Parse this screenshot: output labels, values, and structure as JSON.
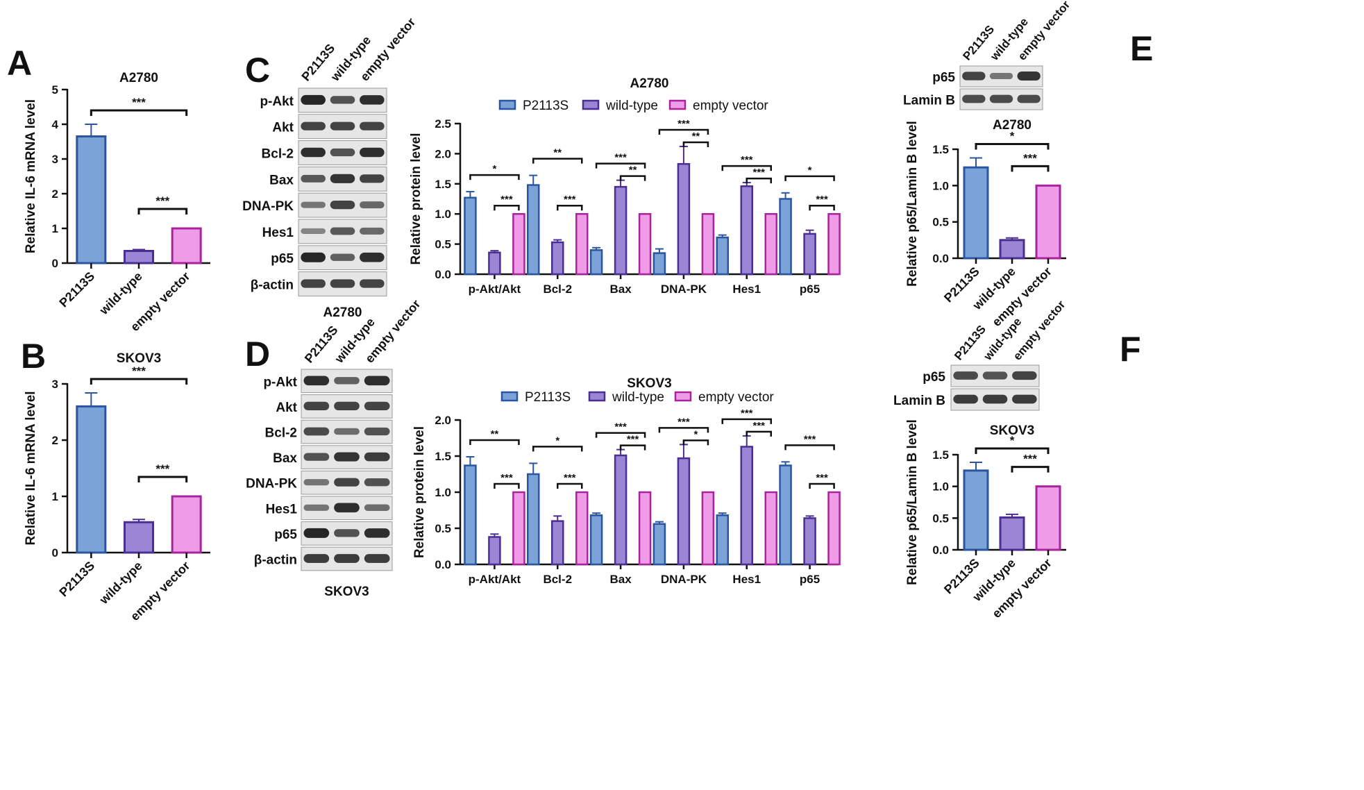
{
  "colors": {
    "P2113S": {
      "fill": "#7ba3d8",
      "stroke": "#2a55a0"
    },
    "wild-type": {
      "fill": "#9b86d6",
      "stroke": "#4b2e90"
    },
    "empty vector": {
      "fill": "#ef9be8",
      "stroke": "#a8249c"
    },
    "axis": "#111111",
    "blot_bg": "#e6e6e6",
    "band": "#262626"
  },
  "panel_letters": {
    "A": "A",
    "B": "B",
    "C": "C",
    "D": "D",
    "E": "E",
    "F": "F"
  },
  "lanes": [
    "P2113S",
    "wild-type",
    "empty vector"
  ],
  "blots": {
    "C": {
      "rows": [
        "p-Akt",
        "Akt",
        "Bcl-2",
        "Bax",
        "DNA-PK",
        "Hes1",
        "p65",
        "β-actin"
      ],
      "caption": "A2780",
      "intensity": [
        [
          1.0,
          0.7,
          0.95
        ],
        [
          0.8,
          0.8,
          0.8
        ],
        [
          0.95,
          0.7,
          0.95
        ],
        [
          0.65,
          0.9,
          0.8
        ],
        [
          0.45,
          0.8,
          0.55
        ],
        [
          0.35,
          0.65,
          0.55
        ],
        [
          1.0,
          0.6,
          0.95
        ],
        [
          0.8,
          0.8,
          0.8
        ]
      ]
    },
    "D": {
      "rows": [
        "p-Akt",
        "Akt",
        "Bcl-2",
        "Bax",
        "DNA-PK",
        "Hes1",
        "p65",
        "β-actin"
      ],
      "caption": "SKOV3",
      "intensity": [
        [
          0.95,
          0.6,
          0.95
        ],
        [
          0.8,
          0.8,
          0.8
        ],
        [
          0.75,
          0.5,
          0.7
        ],
        [
          0.7,
          0.9,
          0.85
        ],
        [
          0.45,
          0.8,
          0.7
        ],
        [
          0.45,
          0.95,
          0.5
        ],
        [
          1.0,
          0.7,
          0.95
        ],
        [
          0.85,
          0.85,
          0.85
        ]
      ]
    },
    "E": {
      "rows": [
        "p65",
        "Lamin B"
      ],
      "intensity": [
        [
          0.8,
          0.45,
          0.9
        ],
        [
          0.75,
          0.75,
          0.75
        ]
      ]
    },
    "F": {
      "rows": [
        "p65",
        "Lamin B"
      ],
      "intensity": [
        [
          0.75,
          0.7,
          0.8
        ],
        [
          0.85,
          0.85,
          0.85
        ]
      ]
    }
  },
  "chart_data": [
    {
      "panel": "A",
      "type": "bar",
      "title": "A2780",
      "ylabel": "Relative IL-6 mRNA level",
      "ylim": [
        0,
        5
      ],
      "yticks": [
        "0",
        "1",
        "2",
        "3",
        "4",
        "5"
      ],
      "categories": [
        "P2113S",
        "wild-type",
        "empty vector"
      ],
      "values": [
        3.65,
        0.35,
        1.0
      ],
      "errors": [
        0.35,
        0.04,
        0.0
      ],
      "significance": [
        {
          "from": 0,
          "to": 2,
          "label": "***"
        },
        {
          "from": 1,
          "to": 2,
          "label": "***"
        }
      ]
    },
    {
      "panel": "B",
      "type": "bar",
      "title": "SKOV3",
      "ylabel": "Relative IL-6 mRNA level",
      "ylim": [
        0,
        3
      ],
      "yticks": [
        "0",
        "1",
        "2",
        "3"
      ],
      "categories": [
        "P2113S",
        "wild-type",
        "empty vector"
      ],
      "values": [
        2.6,
        0.54,
        1.0
      ],
      "errors": [
        0.24,
        0.05,
        0.0
      ],
      "significance": [
        {
          "from": 0,
          "to": 2,
          "label": "***"
        },
        {
          "from": 1,
          "to": 2,
          "label": "***"
        }
      ]
    },
    {
      "panel": "C",
      "type": "bar",
      "title": "A2780",
      "ylabel": "Relative protein level",
      "ylim": [
        0,
        2.5
      ],
      "yticks": [
        "0.0",
        "0.5",
        "1.0",
        "1.5",
        "2.0",
        "2.5"
      ],
      "legend_position": "top",
      "categories": [
        "p-Akt/Akt",
        "Bcl-2",
        "Bax",
        "DNA-PK",
        "Hes1",
        "p65"
      ],
      "series": [
        {
          "name": "P2113S",
          "values": [
            1.27,
            1.48,
            0.4,
            0.35,
            0.61,
            1.25
          ],
          "errors": [
            0.1,
            0.16,
            0.04,
            0.07,
            0.04,
            0.1
          ]
        },
        {
          "name": "wild-type",
          "values": [
            0.36,
            0.53,
            1.45,
            1.83,
            1.46,
            0.67
          ],
          "errors": [
            0.03,
            0.04,
            0.11,
            0.29,
            0.06,
            0.06
          ]
        },
        {
          "name": "empty vector",
          "values": [
            1.0,
            1.0,
            1.0,
            1.0,
            1.0,
            1.0
          ],
          "errors": [
            0,
            0,
            0,
            0,
            0,
            0
          ]
        }
      ],
      "significance": [
        {
          "group": 0,
          "from": 0,
          "to": 2,
          "label": "*"
        },
        {
          "group": 0,
          "from": 1,
          "to": 2,
          "label": "***"
        },
        {
          "group": 1,
          "from": 0,
          "to": 2,
          "label": "**"
        },
        {
          "group": 1,
          "from": 1,
          "to": 2,
          "label": "***"
        },
        {
          "group": 2,
          "from": 0,
          "to": 2,
          "label": "***"
        },
        {
          "group": 2,
          "from": 1,
          "to": 2,
          "label": "**"
        },
        {
          "group": 3,
          "from": 0,
          "to": 2,
          "label": "***"
        },
        {
          "group": 3,
          "from": 1,
          "to": 2,
          "label": "**"
        },
        {
          "group": 4,
          "from": 0,
          "to": 2,
          "label": "***"
        },
        {
          "group": 4,
          "from": 1,
          "to": 2,
          "label": "***"
        },
        {
          "group": 5,
          "from": 0,
          "to": 2,
          "label": "*"
        },
        {
          "group": 5,
          "from": 1,
          "to": 2,
          "label": "***"
        }
      ]
    },
    {
      "panel": "D",
      "type": "bar",
      "title": "SKOV3",
      "ylabel": "Relative protein level",
      "ylim": [
        0,
        2.0
      ],
      "yticks": [
        "0.0",
        "0.5",
        "1.0",
        "1.5",
        "2.0"
      ],
      "legend_position": "top",
      "categories": [
        "p-Akt/Akt",
        "Bcl-2",
        "Bax",
        "DNA-PK",
        "Hes1",
        "p65"
      ],
      "series": [
        {
          "name": "P2113S",
          "values": [
            1.37,
            1.25,
            0.68,
            0.56,
            0.68,
            1.37
          ],
          "errors": [
            0.12,
            0.15,
            0.03,
            0.03,
            0.03,
            0.05
          ]
        },
        {
          "name": "wild-type",
          "values": [
            0.38,
            0.6,
            1.51,
            1.47,
            1.63,
            0.64
          ],
          "errors": [
            0.04,
            0.07,
            0.08,
            0.19,
            0.15,
            0.03
          ]
        },
        {
          "name": "empty vector",
          "values": [
            1.0,
            1.0,
            1.0,
            1.0,
            1.0,
            1.0
          ],
          "errors": [
            0,
            0,
            0,
            0,
            0,
            0
          ]
        }
      ],
      "significance": [
        {
          "group": 0,
          "from": 0,
          "to": 2,
          "label": "**"
        },
        {
          "group": 0,
          "from": 1,
          "to": 2,
          "label": "***"
        },
        {
          "group": 1,
          "from": 0,
          "to": 2,
          "label": "*"
        },
        {
          "group": 1,
          "from": 1,
          "to": 2,
          "label": "***"
        },
        {
          "group": 2,
          "from": 0,
          "to": 2,
          "label": "***"
        },
        {
          "group": 2,
          "from": 1,
          "to": 2,
          "label": "***"
        },
        {
          "group": 3,
          "from": 0,
          "to": 2,
          "label": "***"
        },
        {
          "group": 3,
          "from": 1,
          "to": 2,
          "label": "*"
        },
        {
          "group": 4,
          "from": 0,
          "to": 2,
          "label": "***"
        },
        {
          "group": 4,
          "from": 1,
          "to": 2,
          "label": "***"
        },
        {
          "group": 5,
          "from": 0,
          "to": 2,
          "label": "***"
        },
        {
          "group": 5,
          "from": 1,
          "to": 2,
          "label": "***"
        }
      ]
    },
    {
      "panel": "E",
      "type": "bar",
      "title": "A2780",
      "ylabel": "Relative p65/Lamin B level",
      "ylim": [
        0,
        1.5
      ],
      "yticks": [
        "0.0",
        "0.5",
        "1.0",
        "1.5"
      ],
      "categories": [
        "P2113S",
        "wild-type",
        "empty vector"
      ],
      "values": [
        1.25,
        0.25,
        1.0
      ],
      "errors": [
        0.13,
        0.03,
        0.0
      ],
      "significance": [
        {
          "from": 0,
          "to": 2,
          "label": "*"
        },
        {
          "from": 1,
          "to": 2,
          "label": "***"
        }
      ]
    },
    {
      "panel": "F",
      "type": "bar",
      "title": "SKOV3",
      "ylabel": "Relative p65/Lamin B level",
      "ylim": [
        0,
        1.5
      ],
      "yticks": [
        "0.0",
        "0.5",
        "1.0",
        "1.5"
      ],
      "categories": [
        "P2113S",
        "wild-type",
        "empty vector"
      ],
      "values": [
        1.25,
        0.51,
        1.0
      ],
      "errors": [
        0.13,
        0.05,
        0.0
      ],
      "significance": [
        {
          "from": 0,
          "to": 2,
          "label": "*"
        },
        {
          "from": 1,
          "to": 2,
          "label": "***"
        }
      ]
    }
  ]
}
